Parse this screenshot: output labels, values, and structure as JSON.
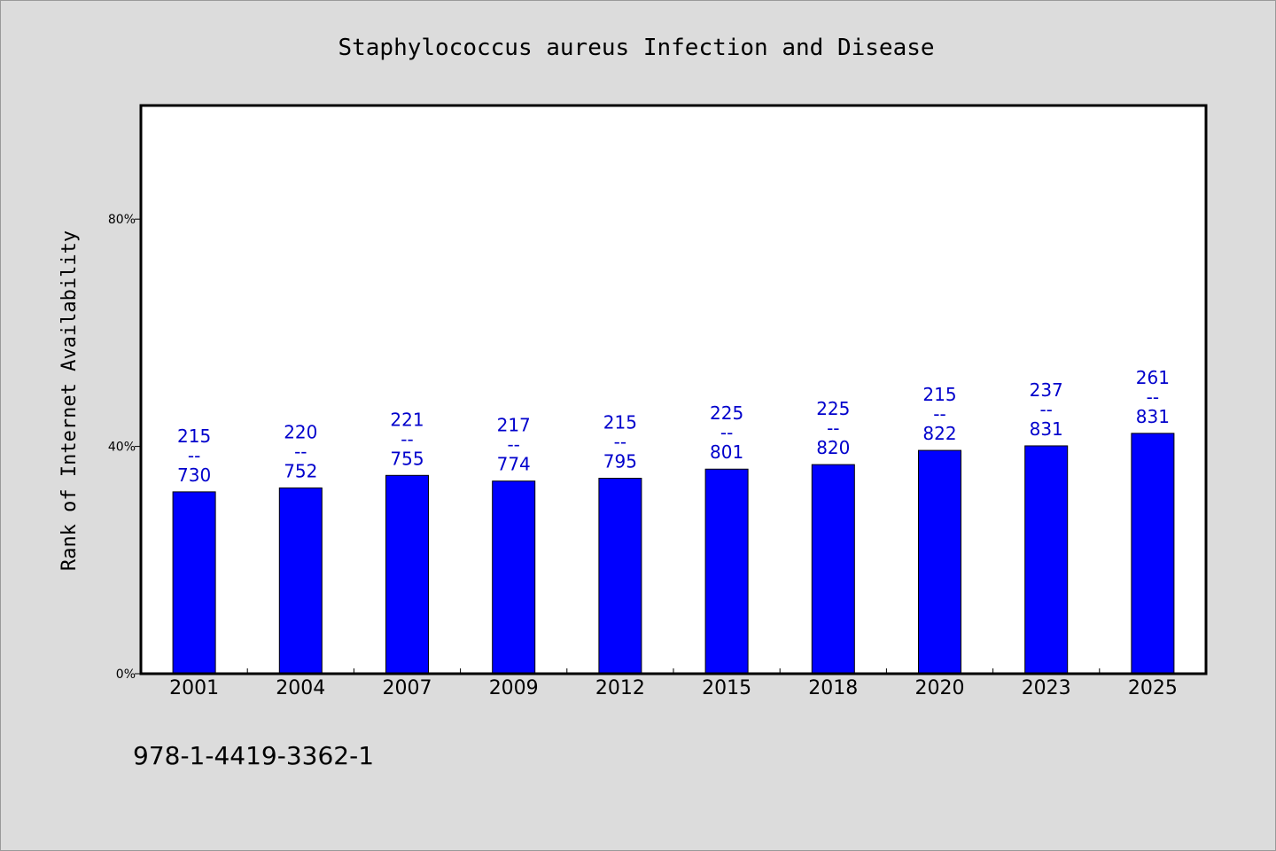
{
  "chart_data": {
    "type": "bar",
    "title": "Staphylococcus aureus Infection and Disease",
    "xlabel": "",
    "ylabel": "Rank of Internet Availability",
    "ylim": [
      0,
      100
    ],
    "yticks": [
      {
        "value": 0,
        "label": "0%"
      },
      {
        "value": 40,
        "label": "40%"
      },
      {
        "value": 80,
        "label": "80%"
      }
    ],
    "grid": false,
    "legend": "none",
    "categories": [
      "2001",
      "2004",
      "2007",
      "2009",
      "2012",
      "2015",
      "2018",
      "2020",
      "2023",
      "2025"
    ],
    "values": [
      32,
      32.7,
      34.9,
      33.9,
      34.4,
      36,
      36.8,
      39.3,
      40.1,
      42.3
    ],
    "data_labels": [
      [
        "215",
        "--",
        "730"
      ],
      [
        "220",
        "--",
        "752"
      ],
      [
        "221",
        "--",
        "755"
      ],
      [
        "217",
        "--",
        "774"
      ],
      [
        "215",
        "--",
        "795"
      ],
      [
        "225",
        "--",
        "801"
      ],
      [
        "225",
        "--",
        "820"
      ],
      [
        "215",
        "--",
        "822"
      ],
      [
        "237",
        "--",
        "831"
      ],
      [
        "261",
        "--",
        "831"
      ]
    ],
    "colors": {
      "bar": "#0000ff",
      "label": "#0000cc",
      "background": "#dcdcdc",
      "plot_background": "#ffffff"
    }
  },
  "footer": {
    "text": "978-1-4419-3362-1"
  }
}
